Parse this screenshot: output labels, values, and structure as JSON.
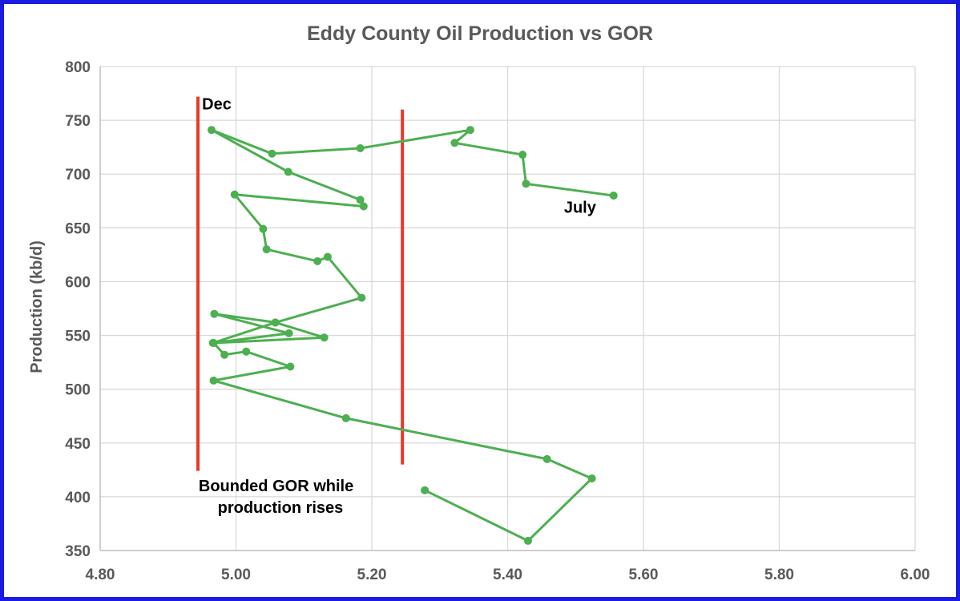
{
  "chart_data": {
    "type": "scatter",
    "title": "Eddy County Oil Production vs GOR",
    "xlabel": "",
    "ylabel": "Production (kb/d)",
    "xlim": [
      4.8,
      6.0
    ],
    "ylim": [
      350,
      800
    ],
    "xticks": [
      "4.80",
      "5.00",
      "5.20",
      "5.40",
      "5.60",
      "5.80",
      "6.00"
    ],
    "yticks": [
      "350",
      "400",
      "450",
      "500",
      "550",
      "600",
      "650",
      "700",
      "750",
      "800"
    ],
    "grid": true,
    "legend": "none",
    "series_color": "#4caf50",
    "line_color": "#e83a2a",
    "series": [
      {
        "points": [
          [
            5.278,
            406
          ],
          [
            5.43,
            359
          ],
          [
            5.524,
            417
          ],
          [
            5.458,
            435
          ],
          [
            5.162,
            473
          ],
          [
            4.967,
            508
          ],
          [
            5.08,
            521
          ],
          [
            5.015,
            535
          ],
          [
            4.983,
            532
          ],
          [
            4.967,
            543
          ],
          [
            5.13,
            548
          ],
          [
            5.058,
            562
          ],
          [
            4.968,
            570
          ],
          [
            5.078,
            552
          ],
          [
            4.966,
            543
          ],
          [
            5.058,
            562
          ],
          [
            5.185,
            585
          ],
          [
            5.135,
            623
          ],
          [
            5.12,
            619
          ],
          [
            5.045,
            630
          ],
          [
            5.04,
            649
          ],
          [
            4.998,
            681
          ],
          [
            5.188,
            670
          ],
          [
            5.183,
            676
          ],
          [
            5.077,
            702
          ],
          [
            4.964,
            741
          ],
          [
            5.053,
            719
          ],
          [
            5.183,
            724
          ],
          [
            5.345,
            741
          ],
          [
            5.322,
            729
          ],
          [
            5.422,
            718
          ],
          [
            5.427,
            691
          ],
          [
            5.556,
            680
          ]
        ]
      }
    ],
    "vertical_lines": [
      {
        "x": 4.944,
        "y_from": 424,
        "y_to": 772
      },
      {
        "x": 5.245,
        "y_from": 430,
        "y_to": 760
      }
    ],
    "annotations": [
      {
        "text": "Dec",
        "x": 4.95,
        "y": 760
      },
      {
        "text": "July",
        "x": 5.483,
        "y": 664
      },
      {
        "text": "Bounded GOR while",
        "x": 4.945,
        "y": 405
      },
      {
        "text": "production rises",
        "x": 4.973,
        "y": 385
      }
    ]
  }
}
